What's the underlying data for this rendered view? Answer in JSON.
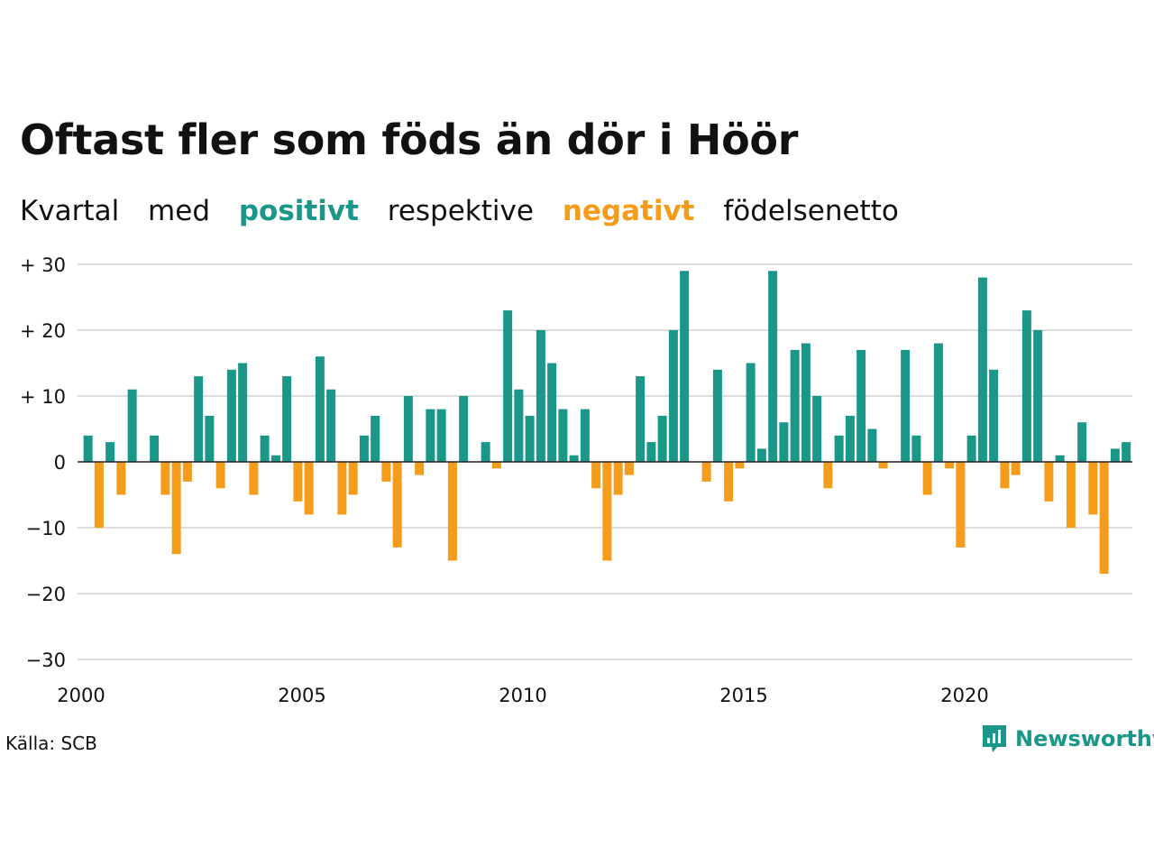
{
  "title": "Oftast fler som föds än dör i Höör",
  "subtitle": {
    "w1": "Kvartal",
    "w2": "med",
    "positive": "positivt",
    "w3": "respektive",
    "negative": "negativt",
    "w4": "födelsenetto"
  },
  "source": "Källa: SCB",
  "brand": "Newsworthy",
  "colors": {
    "positive": "#1a9788",
    "negative": "#f59c1b",
    "grid": "#dddddd",
    "brand": "#1a9788"
  },
  "chart_data": {
    "type": "bar",
    "title": "Oftast fler som föds än dör i Höör",
    "subtitle": "Kvartal med positivt respektive negativt födelsenetto",
    "x_start_year": 2000,
    "periods_per_year": 4,
    "ylim": [
      -30,
      30
    ],
    "yticks": [
      {
        "value": 30,
        "label": "+ 30"
      },
      {
        "value": 20,
        "label": "+ 20"
      },
      {
        "value": 10,
        "label": "+ 10"
      },
      {
        "value": 0,
        "label": "0"
      },
      {
        "value": -10,
        "label": "−10"
      },
      {
        "value": -20,
        "label": "−20"
      },
      {
        "value": -30,
        "label": "−30"
      }
    ],
    "xticks": [
      {
        "year": 2000,
        "label": "2000"
      },
      {
        "year": 2005,
        "label": "2005"
      },
      {
        "year": 2010,
        "label": "2010"
      },
      {
        "year": 2015,
        "label": "2015"
      },
      {
        "year": 2020,
        "label": "2020"
      }
    ],
    "grid": true,
    "values": [
      4,
      -10,
      3,
      -5,
      11,
      0,
      4,
      -5,
      -14,
      -3,
      13,
      7,
      -4,
      14,
      15,
      -5,
      4,
      1,
      13,
      -6,
      -8,
      16,
      11,
      -8,
      -5,
      4,
      7,
      -3,
      -13,
      10,
      -2,
      8,
      8,
      -15,
      10,
      0,
      3,
      -1,
      23,
      11,
      7,
      20,
      15,
      8,
      1,
      8,
      -4,
      -15,
      -5,
      -2,
      13,
      3,
      7,
      20,
      29,
      0,
      -3,
      14,
      -6,
      -1,
      15,
      2,
      29,
      6,
      17,
      18,
      10,
      -4,
      4,
      7,
      17,
      5,
      -1,
      0,
      17,
      4,
      -5,
      18,
      -1,
      -13,
      4,
      28,
      14,
      -4,
      -2,
      23,
      20,
      -6,
      1,
      -10,
      6,
      -8,
      -17,
      2,
      3
    ]
  }
}
